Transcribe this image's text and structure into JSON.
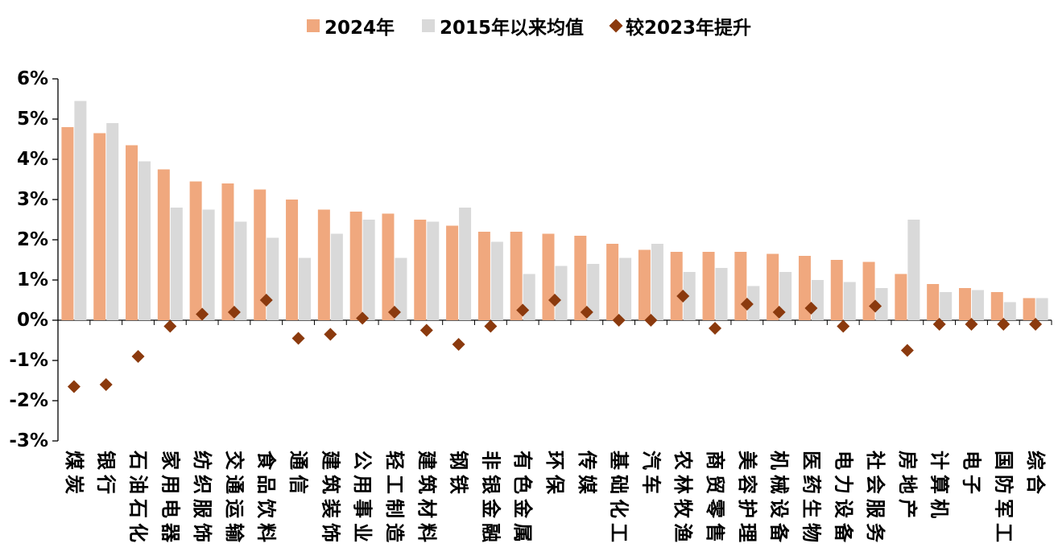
{
  "chart_data": {
    "type": "bar",
    "title": "",
    "legend_position": "top-center",
    "grid": false,
    "ylim": [
      -3,
      6
    ],
    "ytick_step": 1,
    "ytick_labels": [
      "6%",
      "5%",
      "4%",
      "3%",
      "2%",
      "1%",
      "0%",
      "-1%",
      "-2%",
      "-3%"
    ],
    "categories": [
      "煤炭",
      "银行",
      "石油石化",
      "家用电器",
      "纺织服饰",
      "交通运输",
      "食品饮料",
      "通信",
      "建筑装饰",
      "公用事业",
      "轻工制造",
      "建筑材料",
      "钢铁",
      "非银金融",
      "有色金属",
      "环保",
      "传媒",
      "基础化工",
      "汽车",
      "农林牧渔",
      "商贸零售",
      "美容护理",
      "机械设备",
      "医药生物",
      "电力设备",
      "社会服务",
      "房地产",
      "计算机",
      "电子",
      "国防军工",
      "综合"
    ],
    "series": [
      {
        "name": "2024年",
        "type": "bar",
        "color": "#F0A87E",
        "values": [
          4.8,
          4.65,
          4.35,
          3.75,
          3.45,
          3.4,
          3.25,
          3.0,
          2.75,
          2.7,
          2.65,
          2.5,
          2.35,
          2.2,
          2.2,
          2.15,
          2.1,
          1.9,
          1.75,
          1.7,
          1.7,
          1.7,
          1.65,
          1.6,
          1.5,
          1.45,
          1.15,
          0.9,
          0.8,
          0.7,
          0.55
        ]
      },
      {
        "name": "2015年以来均值",
        "type": "bar",
        "color": "#D9D9D9",
        "values": [
          5.45,
          4.9,
          3.95,
          2.8,
          2.75,
          2.45,
          2.05,
          1.55,
          2.15,
          2.5,
          1.55,
          2.45,
          2.8,
          1.95,
          1.15,
          1.35,
          1.4,
          1.55,
          1.9,
          1.2,
          1.3,
          0.85,
          1.2,
          1.0,
          0.95,
          0.8,
          2.5,
          0.7,
          0.75,
          0.45,
          0.55
        ]
      },
      {
        "name": "较2023年提升",
        "type": "scatter",
        "marker": "diamond",
        "color": "#8B3A0E",
        "values": [
          -1.65,
          -1.6,
          -0.9,
          -0.15,
          0.15,
          0.2,
          0.5,
          -0.45,
          -0.35,
          0.05,
          0.2,
          -0.25,
          -0.6,
          -0.15,
          0.25,
          0.5,
          0.2,
          0.0,
          0.0,
          0.6,
          -0.2,
          0.4,
          0.2,
          0.3,
          -0.15,
          0.35,
          -0.75,
          -0.1,
          -0.1,
          -0.1,
          -0.1
        ]
      }
    ],
    "axis_color": "#000000"
  }
}
